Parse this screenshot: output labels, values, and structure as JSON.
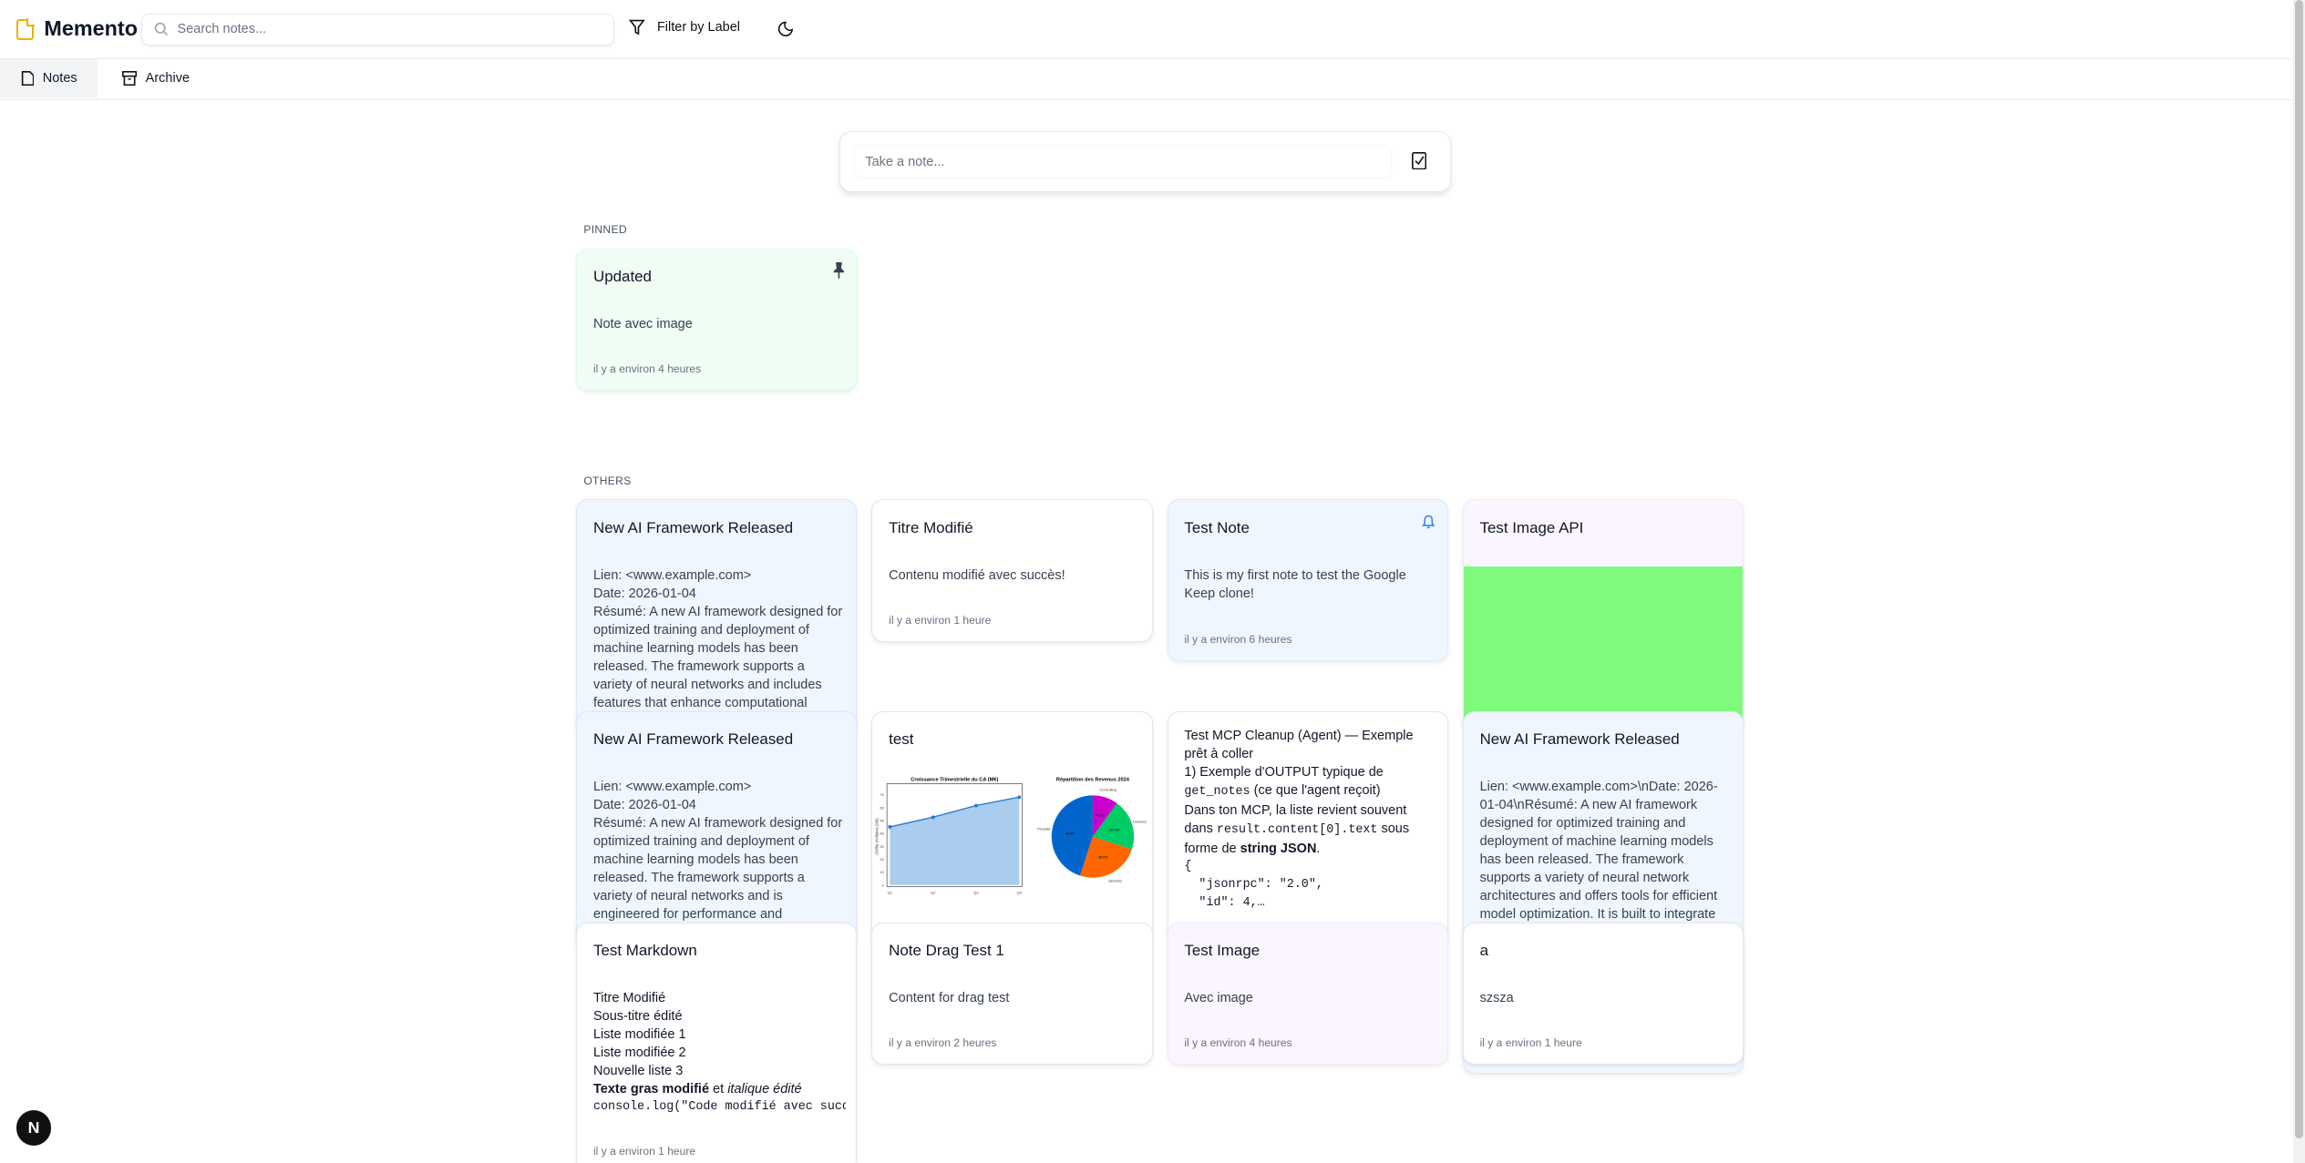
{
  "header": {
    "app_name": "Memento",
    "search_placeholder": "Search notes...",
    "filter_label": "Filter by Label"
  },
  "tabs": [
    {
      "label": "Notes",
      "active": true
    },
    {
      "label": "Archive",
      "active": false
    }
  ],
  "composer": {
    "placeholder": "Take a note..."
  },
  "sections": {
    "pinned": "PINNED",
    "others": "OTHERS"
  },
  "colors": {
    "brand": "#eab308",
    "blue_card": "#eff6ff",
    "purple_card": "#faf5ff",
    "green_card": "#f0fdf4",
    "image_green": "#80fa7c"
  },
  "pinned": [
    {
      "title": "Updated",
      "body": "Note avec image",
      "time": "il y a environ 4 heures",
      "icon": "pin-icon"
    }
  ],
  "others": {
    "ai1": {
      "title": "New AI Framework Released",
      "lines": [
        "Lien: <www.example.com>",
        "Date: 2026-01-04",
        "Résumé: A new AI framework designed for optimized training and deployment of machine learning models has been released. The framework supports a variety of neural networks and includes features that enhance computational"
      ]
    },
    "titre": {
      "title": "Titre Modifié",
      "body": "Contenu modifié avec succès!",
      "time": "il y a environ 1 heure"
    },
    "testnote": {
      "title": "Test Note",
      "body": "This is my first note to test the Google Keep clone!",
      "time": "il y a environ 6 heures",
      "icon": "bell-icon"
    },
    "imgapi": {
      "title": "Test Image API"
    },
    "ai2": {
      "title": "New AI Framework Released",
      "lines": [
        "Lien: <www.example.com>",
        "Date: 2026-01-04",
        "Résumé: A new AI framework designed for optimized training and deployment of machine learning models has been released. The framework supports a variety of neural networks and is engineered for performance and"
      ]
    },
    "test": {
      "title": "test",
      "chart": {
        "line_title": "Croissance Trimestrielle du CA (M€)",
        "line_ylabel": "Chiffre d'Affaires (M€)",
        "quarters": [
          "Q1",
          "Q2",
          "Q3",
          "Q4"
        ],
        "values": [
          45,
          52.5,
          61.5,
          68
        ],
        "yticks": [
          0,
          10,
          20,
          30,
          40,
          50,
          60,
          70
        ],
        "pie_title": "Répartition des Revenus 2024",
        "slices": [
          {
            "label": "Produits",
            "value": 45,
            "color": "#0066cc"
          },
          {
            "label": "Services",
            "value": 25,
            "color": "#ff6600"
          },
          {
            "label": "Licences",
            "value": 20,
            "color": "#00cc66"
          },
          {
            "label": "Consulting",
            "value": 10,
            "color": "#cc00cc"
          }
        ]
      }
    },
    "mcp": {
      "title": "Test MCP Cleanup (Agent) — Exemple prêt à coller",
      "l1": "1) Exemple d'OUTPUT typique de",
      "l2_code": "get_notes",
      "l2_text": " (ce que l'agent reçoit)",
      "l3": "Dans ton MCP, la liste revient souvent",
      "l4_pre": "dans ",
      "l4_code": "result.content[0].text",
      "l4_post": " sous",
      "l5_pre": "forme de ",
      "l5_bold": "string JSON",
      "l5_post": ".",
      "code": [
        "{",
        "  \"jsonrpc\": \"2.0\",",
        "  \"id\": 4,…"
      ]
    },
    "ai3": {
      "title": "New AI Framework Released",
      "body": "Lien: <www.example.com>\\nDate: 2026-01-04\\nRésumé: A new AI framework designed for optimized training and deployment of machine learning models has been released. The framework supports a variety of neural network architectures and offers tools for efficient model optimization. It is built to integrate"
    },
    "markdown": {
      "title": "Test Markdown",
      "lines": [
        "Titre Modifié",
        "Sous-titre édité",
        "Liste modifiée 1",
        "Liste modifiée 2",
        "Nouvelle liste 3"
      ],
      "bold": "Texte gras modifié",
      "et": " et ",
      "italic": "italique édité",
      "code": "console.log(\"Code modifié avec succès\")",
      "time": "il y a environ 1 heure"
    },
    "drag": {
      "title": "Note Drag Test 1",
      "body": "Content for drag test",
      "time": "il y a environ 2 heures"
    },
    "testimage": {
      "title": "Test Image",
      "body": "Avec image",
      "time": "il y a environ 4 heures"
    },
    "a": {
      "title": "a",
      "body": "szsza",
      "time": "il y a environ 1 heure"
    }
  },
  "dev_button": "N"
}
